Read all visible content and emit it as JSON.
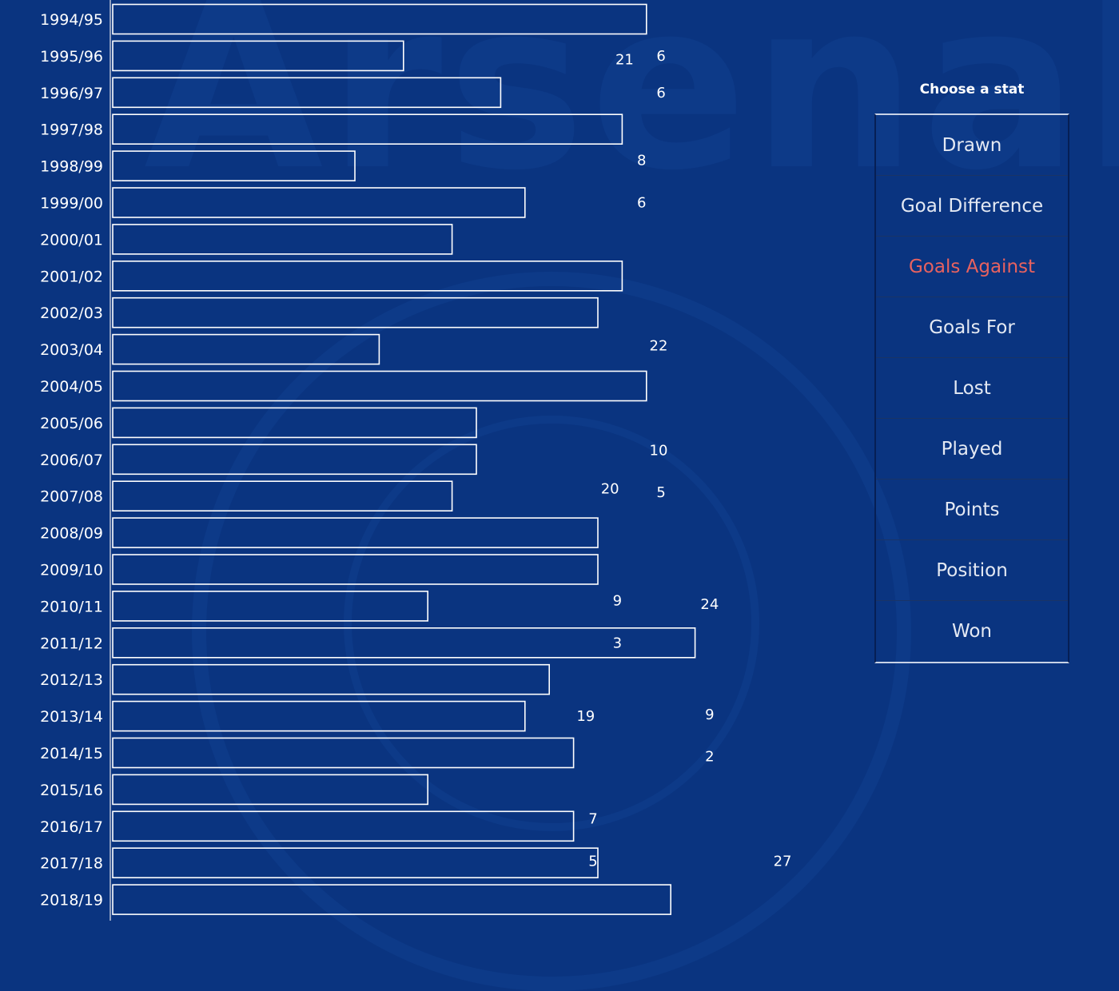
{
  "colors": {
    "background": "#0a3480",
    "bar_stroke": "#ffffff",
    "text": "#ffffff",
    "selected_stat": "#e8625f"
  },
  "stat_selector": {
    "title": "Choose a stat",
    "selected": "Goals Against",
    "options": [
      "Drawn",
      "Goal Difference",
      "Goals Against",
      "Goals For",
      "Lost",
      "Played",
      "Points",
      "Position",
      "Won"
    ]
  },
  "chart_data": {
    "type": "bar",
    "orientation": "horizontal",
    "categories": [
      "1994/95",
      "1995/96",
      "1996/97",
      "1997/98",
      "1998/99",
      "1999/00",
      "2000/01",
      "2001/02",
      "2002/03",
      "2003/04",
      "2004/05",
      "2005/06",
      "2006/07",
      "2007/08",
      "2008/09",
      "2009/10",
      "2010/11",
      "2011/12",
      "2012/13",
      "2013/14",
      "2014/15",
      "2015/16",
      "2016/17",
      "2017/18",
      "2018/19"
    ],
    "values": [
      22,
      12,
      16,
      21,
      10,
      17,
      14,
      21,
      20,
      11,
      22,
      15,
      15,
      14,
      20,
      20,
      13,
      24,
      18,
      17,
      19,
      13,
      19,
      20,
      23
    ],
    "xlim": [
      0,
      28
    ],
    "grid": false,
    "floating_labels": [
      {
        "text": "21",
        "x": 21.1,
        "y": 1.1
      },
      {
        "text": "6",
        "x": 22.6,
        "y": 1.0
      },
      {
        "text": "6",
        "x": 22.6,
        "y": 2.0
      },
      {
        "text": "8",
        "x": 21.8,
        "y": 3.85
      },
      {
        "text": "6",
        "x": 21.8,
        "y": 5.0
      },
      {
        "text": "22",
        "x": 22.5,
        "y": 8.9
      },
      {
        "text": "10",
        "x": 22.5,
        "y": 11.75
      },
      {
        "text": "20",
        "x": 20.5,
        "y": 12.8
      },
      {
        "text": "5",
        "x": 22.6,
        "y": 12.9
      },
      {
        "text": "9",
        "x": 20.8,
        "y": 15.85
      },
      {
        "text": "24",
        "x": 24.6,
        "y": 15.95
      },
      {
        "text": "3",
        "x": 20.8,
        "y": 17.0
      },
      {
        "text": "19",
        "x": 19.5,
        "y": 19.0
      },
      {
        "text": "9",
        "x": 24.6,
        "y": 18.95
      },
      {
        "text": "2",
        "x": 24.6,
        "y": 20.1
      },
      {
        "text": "7",
        "x": 19.8,
        "y": 21.8
      },
      {
        "text": "5",
        "x": 19.8,
        "y": 22.95
      },
      {
        "text": "27",
        "x": 27.6,
        "y": 22.95
      }
    ]
  }
}
